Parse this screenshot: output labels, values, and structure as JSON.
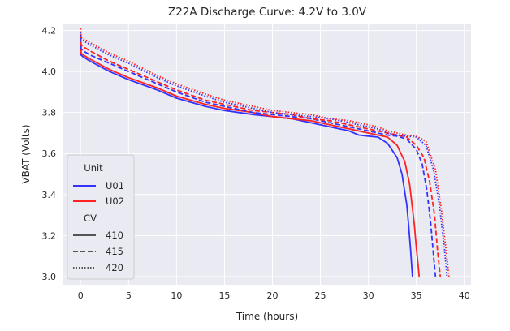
{
  "chart_data": {
    "type": "line",
    "title": "Z22A Discharge Curve: 4.2V to 3.0V",
    "xlabel": "Time (hours)",
    "ylabel": "VBAT (Volts)",
    "xlim": [
      -1.8,
      40.7
    ],
    "ylim": [
      2.96,
      4.23
    ],
    "xticks": [
      0,
      5,
      10,
      15,
      20,
      25,
      30,
      35,
      40
    ],
    "yticks": [
      3.0,
      3.2,
      3.4,
      3.6,
      3.8,
      4.0,
      4.2
    ],
    "xtick_labels": [
      "0",
      "5",
      "10",
      "15",
      "20",
      "25",
      "30",
      "35",
      "40"
    ],
    "ytick_labels": [
      "3.0",
      "3.2",
      "3.4",
      "3.6",
      "3.8",
      "4.0",
      "4.2"
    ],
    "grid": true,
    "legend": {
      "placement": "lower-left",
      "hue_title": "Unit",
      "style_title": "CV",
      "hue_entries": [
        {
          "label": "U01",
          "color": "#3333ff"
        },
        {
          "label": "U02",
          "color": "#ff2222"
        }
      ],
      "style_entries": [
        {
          "label": "410",
          "dash": "solid"
        },
        {
          "label": "415",
          "dash": "dashed"
        },
        {
          "label": "420",
          "dash": "dotted"
        }
      ]
    },
    "series": [
      {
        "unit": "U01",
        "cv": "410",
        "color": "#3333ff",
        "dash": "solid",
        "x": [
          0,
          0.05,
          0.3,
          1,
          3,
          5,
          8,
          10,
          13,
          15,
          18,
          20,
          22,
          24,
          26,
          28,
          29,
          30,
          31,
          32,
          33,
          33.5,
          34,
          34.2,
          34.4,
          34.5,
          34.6
        ],
        "y": [
          4.12,
          4.08,
          4.07,
          4.05,
          4.0,
          3.96,
          3.91,
          3.87,
          3.83,
          3.81,
          3.79,
          3.78,
          3.77,
          3.75,
          3.73,
          3.71,
          3.69,
          3.685,
          3.68,
          3.65,
          3.58,
          3.5,
          3.35,
          3.25,
          3.13,
          3.06,
          3.0
        ]
      },
      {
        "unit": "U02",
        "cv": "410",
        "color": "#ff2222",
        "dash": "solid",
        "x": [
          0,
          0.05,
          0.3,
          1,
          3,
          5,
          8,
          10,
          13,
          15,
          18,
          20,
          22,
          24,
          26,
          28,
          30,
          31,
          32,
          33,
          33.8,
          34.3,
          34.8,
          35,
          35.2,
          35.3
        ],
        "y": [
          4.14,
          4.09,
          4.08,
          4.06,
          4.01,
          3.97,
          3.92,
          3.88,
          3.84,
          3.82,
          3.8,
          3.78,
          3.77,
          3.76,
          3.74,
          3.72,
          3.7,
          3.69,
          3.68,
          3.64,
          3.56,
          3.45,
          3.25,
          3.14,
          3.05,
          3.0
        ]
      },
      {
        "unit": "U01",
        "cv": "415",
        "color": "#3333ff",
        "dash": "dashed",
        "x": [
          0,
          0.05,
          0.3,
          1,
          3,
          5,
          8,
          10,
          13,
          15,
          18,
          20,
          22,
          24,
          26,
          28,
          30,
          31,
          32,
          33,
          34,
          35,
          35.6,
          36.1,
          36.5,
          36.8,
          37
        ],
        "y": [
          4.16,
          4.11,
          4.1,
          4.08,
          4.04,
          4.0,
          3.94,
          3.9,
          3.85,
          3.83,
          3.8,
          3.79,
          3.78,
          3.77,
          3.75,
          3.73,
          3.71,
          3.7,
          3.69,
          3.685,
          3.67,
          3.62,
          3.55,
          3.42,
          3.26,
          3.1,
          3.0
        ]
      },
      {
        "unit": "U02",
        "cv": "415",
        "color": "#ff2222",
        "dash": "dashed",
        "x": [
          0,
          0.05,
          0.3,
          1,
          3,
          5,
          8,
          10,
          13,
          15,
          18,
          20,
          22,
          24,
          26,
          28,
          30,
          31,
          32,
          33,
          34,
          35,
          35.8,
          36.4,
          36.9,
          37.2,
          37.5
        ],
        "y": [
          4.18,
          4.13,
          4.12,
          4.1,
          4.05,
          4.01,
          3.95,
          3.91,
          3.86,
          3.84,
          3.81,
          3.8,
          3.79,
          3.77,
          3.76,
          3.74,
          3.72,
          3.71,
          3.7,
          3.69,
          3.68,
          3.64,
          3.58,
          3.46,
          3.3,
          3.13,
          3.0
        ]
      },
      {
        "unit": "U01",
        "cv": "420",
        "color": "#3333ff",
        "dash": "dotted",
        "x": [
          0,
          0.05,
          0.3,
          1,
          3,
          5,
          8,
          10,
          13,
          15,
          18,
          20,
          22,
          24,
          26,
          28,
          30,
          31,
          32,
          33,
          34,
          35,
          36,
          36.8,
          37.4,
          37.9,
          38.2
        ],
        "y": [
          4.19,
          4.16,
          4.15,
          4.13,
          4.08,
          4.04,
          3.97,
          3.93,
          3.88,
          3.85,
          3.82,
          3.8,
          3.79,
          3.78,
          3.77,
          3.75,
          3.73,
          3.72,
          3.7,
          3.69,
          3.685,
          3.68,
          3.64,
          3.52,
          3.35,
          3.15,
          3.0
        ]
      },
      {
        "unit": "U02",
        "cv": "420",
        "color": "#ff2222",
        "dash": "dotted",
        "x": [
          0,
          0.05,
          0.3,
          1,
          3,
          5,
          8,
          10,
          13,
          15,
          18,
          20,
          22,
          24,
          26,
          28,
          30,
          31,
          32,
          33,
          34,
          35,
          36,
          37,
          37.6,
          38.1,
          38.4
        ],
        "y": [
          4.21,
          4.17,
          4.16,
          4.14,
          4.09,
          4.05,
          3.98,
          3.94,
          3.89,
          3.86,
          3.83,
          3.81,
          3.8,
          3.79,
          3.77,
          3.76,
          3.74,
          3.73,
          3.71,
          3.7,
          3.69,
          3.685,
          3.66,
          3.52,
          3.33,
          3.13,
          3.0
        ]
      }
    ]
  }
}
